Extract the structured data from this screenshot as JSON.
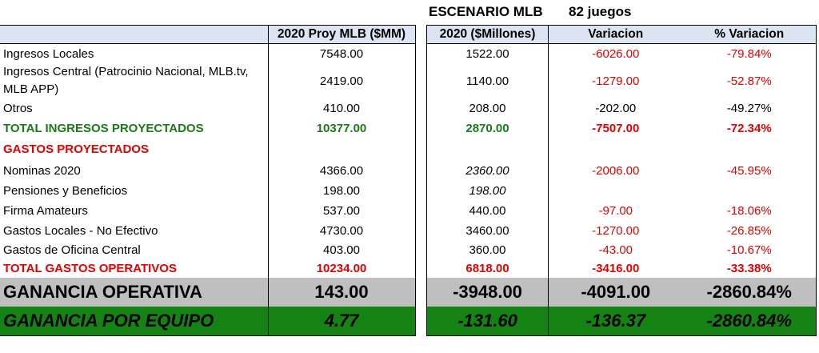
{
  "scenario": {
    "label": "ESCENARIO MLB",
    "games": "82 juegos"
  },
  "headers": {
    "proj": "2020 Proy MLB ($MM)",
    "millones": "2020 ($Millones)",
    "variacion": "Variacion",
    "pct_variacion": "% Variacion"
  },
  "rows": [
    {
      "label": "Ingresos Locales",
      "proj": "7548.00",
      "mill": "1522.00",
      "var": "-6026.00",
      "pct": "-79.84%"
    },
    {
      "label": "Ingresos Central (Patrocinio Nacional, MLB.tv, MLB APP)",
      "proj": "2419.00",
      "mill": "1140.00",
      "var": "-1279.00",
      "pct": "-52.87%"
    },
    {
      "label": "Otros",
      "proj": "410.00",
      "mill": "208.00",
      "var": "-202.00",
      "pct": "-49.27%"
    },
    {
      "label": "TOTAL INGRESOS PROYECTADOS",
      "proj": "10377.00",
      "mill": "2870.00",
      "var": "-7507.00",
      "pct": "-72.34%"
    },
    {
      "label": "GASTOS PROYECTADOS"
    },
    {
      "label": "Nominas 2020",
      "proj": "4366.00",
      "mill": "2360.00",
      "var": "-2006.00",
      "pct": "-45.95%"
    },
    {
      "label": "Pensiones y Beneficios",
      "proj": "198.00",
      "mill": "198.00"
    },
    {
      "label": "Firma Amateurs",
      "proj": "537.00",
      "mill": "440.00",
      "var": "-97.00",
      "pct": "-18.06%"
    },
    {
      "label": "Gastos Locales - No Efectivo",
      "proj": "4730.00",
      "mill": "3460.00",
      "var": "-1270.00",
      "pct": "-26.85%"
    },
    {
      "label": "Gastos de Oficina Central",
      "proj": "403.00",
      "mill": "360.00",
      "var": "-43.00",
      "pct": "-10.67%"
    },
    {
      "label": "TOTAL GASTOS OPERATIVOS",
      "proj": "10234.00",
      "mill": "6818.00",
      "var": "-3416.00",
      "pct": "-33.38%"
    },
    {
      "label": "GANANCIA OPERATIVA",
      "proj": "143.00",
      "mill": "-3948.00",
      "var": "-4091.00",
      "pct": "-2860.84%"
    },
    {
      "label": "GANANCIA POR EQUIPO",
      "proj": "4.77",
      "mill": "-131.60",
      "var": "-136.37",
      "pct": "-2860.84%"
    }
  ],
  "colors": {
    "header_bg": "#dbe5f1",
    "negative": "#e60000",
    "total_income": "#1a7a1a",
    "operating_bg": "#bfbfbf",
    "per_team_bg": "#148314"
  }
}
